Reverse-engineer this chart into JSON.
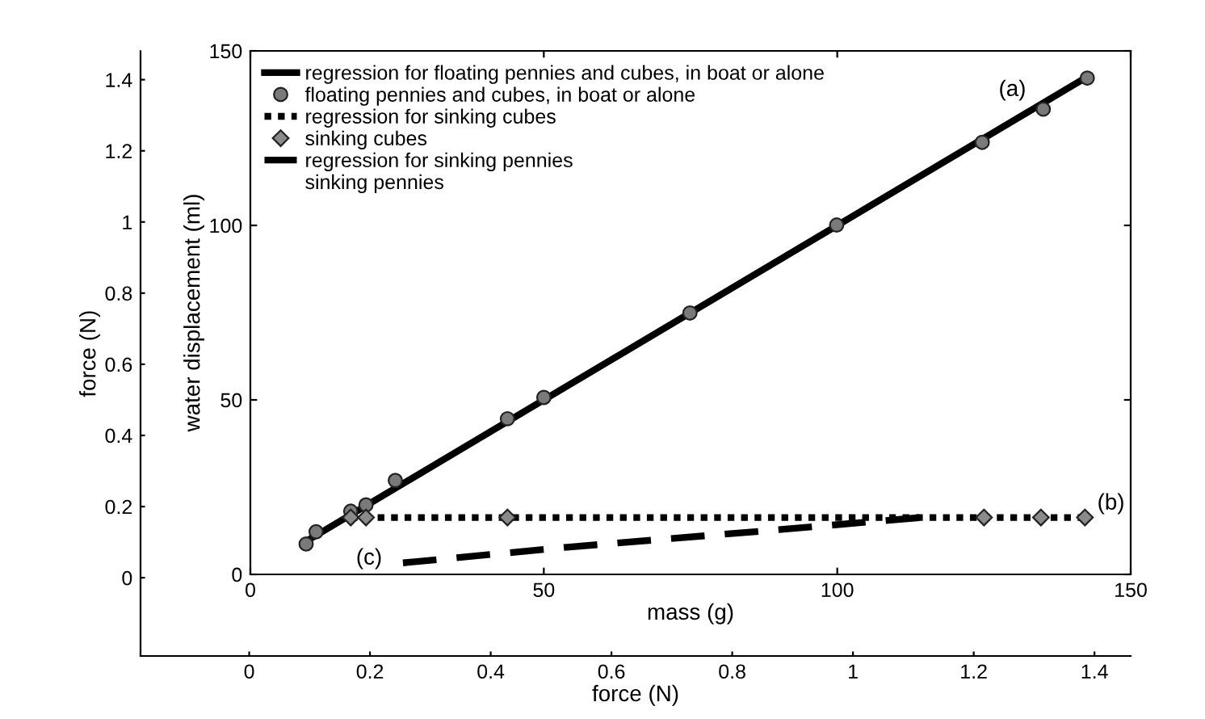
{
  "chart_data": {
    "type": "line",
    "xlabel": "mass (g)",
    "ylabel": "water displacement (ml)",
    "xlim": [
      0,
      150
    ],
    "ylim": [
      0,
      150
    ],
    "xticks": [
      0,
      50,
      100,
      150
    ],
    "yticks": [
      0,
      50,
      100,
      150
    ],
    "x2label": "force (N)",
    "x2lim": [
      -0.18,
      1.46
    ],
    "x2ticks": [
      0,
      0.2,
      0.4,
      0.6,
      0.8,
      1,
      1.2,
      1.4
    ],
    "y2label": "force (N)",
    "y2lim": [
      -0.22,
      1.48
    ],
    "y2ticks": [
      0,
      0.2,
      0.4,
      0.6,
      0.8,
      1,
      1.2,
      1.4
    ],
    "grid": false,
    "legend": "top left",
    "series": [
      {
        "name": "regression for floating pennies and cubes, in boat or alone",
        "line_style": "solid",
        "marker": "none",
        "color": "#000000",
        "x": [
          9.5,
          142.6
        ],
        "values": [
          9.5,
          142.6
        ]
      },
      {
        "name": "floating pennies and cubes, in boat or alone",
        "type": "scatter",
        "marker": "circle",
        "color": "#7a7a7a",
        "x": [
          9.5,
          11.2,
          17.1,
          19.7,
          24.7,
          43.8,
          50,
          74.9,
          99.9,
          124.7,
          135.1,
          142.6
        ],
        "values": [
          8.7,
          12.2,
          18.1,
          19.9,
          26.9,
          44.6,
          50.7,
          74.9,
          100.1,
          123.8,
          133.3,
          142.2
        ]
      },
      {
        "name": "regression for sinking cubes",
        "line_style": "dotted",
        "marker": "none",
        "color": "#000000",
        "x": [
          17.1,
          142.2
        ],
        "values": [
          16.3,
          16.3
        ]
      },
      {
        "name": "sinking cubes",
        "type": "scatter",
        "marker": "diamond",
        "color": "#8a8a8a",
        "x": [
          17.1,
          19.7,
          43.8,
          125,
          134.7,
          142.2
        ],
        "values": [
          16.3,
          16.3,
          16.3,
          16.3,
          16.3,
          16.3
        ]
      },
      {
        "name": "regression for sinking pennies",
        "line_style": "dashed",
        "marker": "none",
        "color": "#000000",
        "x": [
          26,
          54,
          90,
          117
        ],
        "values": [
          3.3,
          7.8,
          12.8,
          16.7
        ]
      },
      {
        "name": "sinking pennies",
        "type": "scatter",
        "marker": "none",
        "color": "#000000"
      }
    ],
    "annotations": [
      "(a)",
      "(b)",
      "(c)"
    ]
  }
}
